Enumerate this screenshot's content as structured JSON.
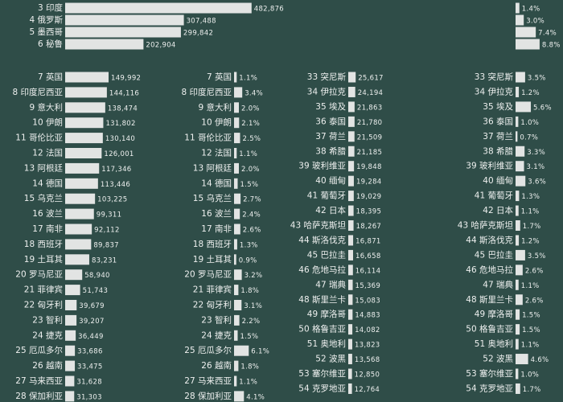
{
  "chart_data": [
    {
      "type": "bar",
      "orientation": "horizontal",
      "color": "#e2e4e3",
      "categories": [
        "3 印度",
        "4 俄罗斯",
        "5 墨西哥",
        "6 秘鲁"
      ],
      "values": [
        482876,
        307488,
        299842,
        202904
      ],
      "value_labels": [
        "482,876",
        "307,488",
        "299,842",
        "202,904"
      ]
    },
    {
      "type": "bar",
      "orientation": "horizontal",
      "color": "#e2e4e3",
      "values": [
        1.4,
        3.0,
        7.4,
        8.8
      ],
      "value_labels": [
        "1.4%",
        "3.0%",
        "7.4%",
        "8.8%"
      ]
    },
    {
      "type": "bar",
      "orientation": "horizontal",
      "color": "#e2e4e3",
      "categories": [
        "7 英国",
        "8 印度尼西亚",
        "9 意大利",
        "10 伊朗",
        "11 哥伦比亚",
        "12 法国",
        "13 阿根廷",
        "14 德国",
        "15 乌克兰",
        "16 波兰",
        "17 南非",
        "18 西班牙",
        "19 土耳其",
        "20 罗马尼亚",
        "21 菲律宾",
        "22 匈牙利",
        "23 智利",
        "24 捷克",
        "25 厄瓜多尔",
        "26 越南",
        "27 马来西亚",
        "28 保加利亚"
      ],
      "values": [
        149992,
        144116,
        138474,
        131802,
        130140,
        126001,
        117346,
        113446,
        103225,
        99311,
        92112,
        89837,
        83231,
        58940,
        51743,
        39679,
        39207,
        36449,
        33686,
        33475,
        31628,
        31303
      ],
      "value_labels": [
        "149,992",
        "144,116",
        "138,474",
        "131,802",
        "130,140",
        "126,001",
        "117,346",
        "113,446",
        "103,225",
        "99,311",
        "92,112",
        "89,837",
        "83,231",
        "58,940",
        "51,743",
        "39,679",
        "39,207",
        "36,449",
        "33,686",
        "33,475",
        "31,628",
        "31,303"
      ]
    },
    {
      "type": "bar",
      "orientation": "horizontal",
      "color": "#e2e4e3",
      "categories": [
        "7 英国",
        "8 印度尼西亚",
        "9 意大利",
        "10 伊朗",
        "11 哥伦比亚",
        "12 法国",
        "13 阿根廷",
        "14 德国",
        "15 乌克兰",
        "16 波兰",
        "17 南非",
        "18 西班牙",
        "19 土耳其",
        "20 罗马尼亚",
        "21 菲律宾",
        "22 匈牙利",
        "23 智利",
        "24 捷克",
        "25 厄瓜多尔",
        "26 越南",
        "27 马来西亚",
        "28 保加利亚"
      ],
      "values": [
        1.1,
        3.4,
        2.0,
        2.1,
        2.5,
        1.1,
        2.0,
        1.5,
        2.7,
        2.4,
        2.6,
        1.3,
        0.9,
        3.2,
        1.8,
        3.1,
        2.2,
        1.5,
        6.1,
        1.8,
        1.1,
        4.1
      ],
      "value_labels": [
        "1.1%",
        "3.4%",
        "2.0%",
        "2.1%",
        "2.5%",
        "1.1%",
        "2.0%",
        "1.5%",
        "2.7%",
        "2.4%",
        "2.6%",
        "1.3%",
        "0.9%",
        "3.2%",
        "1.8%",
        "3.1%",
        "2.2%",
        "1.5%",
        "6.1%",
        "1.8%",
        "1.1%",
        "4.1%"
      ]
    },
    {
      "type": "bar",
      "orientation": "horizontal",
      "color": "#e2e4e3",
      "categories": [
        "33 突尼斯",
        "34 伊拉克",
        "35 埃及",
        "36 泰国",
        "37 荷兰",
        "38 希腊",
        "39 玻利维亚",
        "40 缅甸",
        "41 葡萄牙",
        "42 日本",
        "43 哈萨克斯坦",
        "44 斯洛伐克",
        "45 巴拉圭",
        "46 危地马拉",
        "47 瑞典",
        "48 斯里兰卡",
        "49 摩洛哥",
        "50 格鲁吉亚",
        "51 奥地利",
        "52 波黑",
        "53 塞尔维亚",
        "54 克罗地亚"
      ],
      "values": [
        25617,
        24194,
        21863,
        21780,
        21509,
        21185,
        19848,
        19284,
        19029,
        18395,
        18267,
        16871,
        16658,
        16114,
        15369,
        15083,
        14883,
        14082,
        13823,
        13568,
        12850,
        12764
      ],
      "value_labels": [
        "25,617",
        "24,194",
        "21,863",
        "21,780",
        "21,509",
        "21,185",
        "19,848",
        "19,284",
        "19,029",
        "18,395",
        "18,267",
        "16,871",
        "16,658",
        "16,114",
        "15,369",
        "15,083",
        "14,883",
        "14,082",
        "13,823",
        "13,568",
        "12,850",
        "12,764"
      ]
    },
    {
      "type": "bar",
      "orientation": "horizontal",
      "color": "#e2e4e3",
      "categories": [
        "33 突尼斯",
        "34 伊拉克",
        "35 埃及",
        "36 泰国",
        "37 荷兰",
        "38 希腊",
        "39 玻利维亚",
        "40 缅甸",
        "41 葡萄牙",
        "42 日本",
        "43 哈萨克斯坦",
        "44 斯洛伐克",
        "45 巴拉圭",
        "46 危地马拉",
        "47 瑞典",
        "48 斯里兰卡",
        "49 摩洛哥",
        "50 格鲁吉亚",
        "51 奥地利",
        "52 波黑",
        "53 塞尔维亚",
        "54 克罗地亚"
      ],
      "values": [
        3.5,
        1.2,
        5.6,
        1.0,
        0.7,
        3.3,
        3.1,
        3.6,
        1.3,
        1.1,
        1.7,
        1.2,
        3.5,
        2.6,
        1.1,
        2.6,
        1.5,
        1.5,
        1.1,
        4.6,
        1.0,
        1.7
      ],
      "value_labels": [
        "3.5%",
        "1.2%",
        "5.6%",
        "1.0%",
        "0.7%",
        "3.3%",
        "3.1%",
        "3.6%",
        "1.3%",
        "1.1%",
        "1.7%",
        "1.2%",
        "3.5%",
        "2.6%",
        "1.1%",
        "2.6%",
        "1.5%",
        "1.5%",
        "1.1%",
        "4.6%",
        "1.0%",
        "1.7%"
      ]
    }
  ]
}
